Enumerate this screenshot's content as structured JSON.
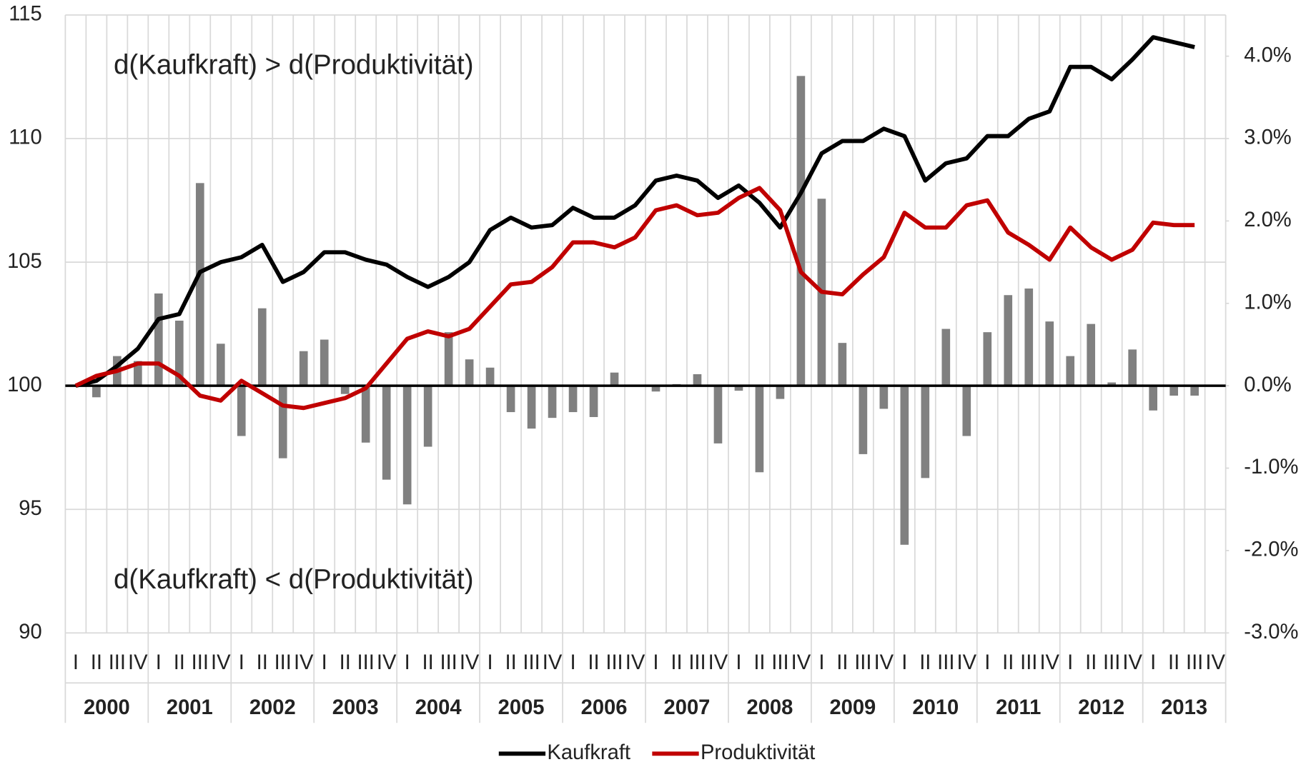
{
  "chart_data": {
    "type": "combo",
    "annotations": [
      "d(Kaufkraft) > d(Produktivität)",
      "d(Kaufkraft) < d(Produktivität)"
    ],
    "categories": [
      "I",
      "II",
      "III",
      "IV",
      "I",
      "II",
      "III",
      "IV",
      "I",
      "II",
      "III",
      "IV",
      "I",
      "II",
      "III",
      "IV",
      "I",
      "II",
      "III",
      "IV",
      "I",
      "II",
      "III",
      "IV",
      "I",
      "II",
      "III",
      "IV",
      "I",
      "II",
      "III",
      "IV",
      "I",
      "II",
      "III",
      "IV",
      "I",
      "II",
      "III",
      "IV",
      "I",
      "II",
      "III",
      "IV",
      "I",
      "II",
      "III",
      "IV",
      "I",
      "II",
      "III",
      "IV",
      "I",
      "II",
      "III",
      "IV"
    ],
    "years": [
      "2000",
      "2001",
      "2002",
      "2003",
      "2004",
      "2005",
      "2006",
      "2007",
      "2008",
      "2009",
      "2010",
      "2011",
      "2012",
      "2013"
    ],
    "ylim": [
      90,
      115
    ],
    "yticks": [
      90,
      95,
      100,
      105,
      110,
      115
    ],
    "y2lim": [
      -3,
      4.5
    ],
    "y2ticks": [
      {
        "value": -3,
        "label": "-3.0%"
      },
      {
        "value": -2,
        "label": "-2.0%"
      },
      {
        "value": -1,
        "label": "-1.0%"
      },
      {
        "value": 0,
        "label": "0.0%"
      },
      {
        "value": 1,
        "label": "1.0%"
      },
      {
        "value": 2,
        "label": "2.0%"
      },
      {
        "value": 3,
        "label": "3.0%"
      },
      {
        "value": 4,
        "label": "4.0%"
      }
    ],
    "grid": true,
    "legend": "bottom",
    "series": [
      {
        "type": "bar",
        "axis": "y2",
        "color": "#808080",
        "values": [
          0,
          -0.14,
          0.36,
          0.3,
          1.12,
          0.79,
          2.46,
          0.51,
          -0.61,
          0.94,
          -0.88,
          0.42,
          0.56,
          -0.1,
          -0.69,
          -1.14,
          -1.44,
          -0.74,
          0.65,
          0.32,
          0.22,
          -0.32,
          -0.52,
          -0.39,
          -0.32,
          -0.38,
          0.16,
          0,
          -0.07,
          0.02,
          0.14,
          -0.7,
          -0.06,
          -1.05,
          -0.16,
          3.76,
          2.27,
          0.52,
          -0.83,
          -0.28,
          -1.93,
          -1.12,
          0.69,
          -0.61,
          0.65,
          1.1,
          1.18,
          0.78,
          0.36,
          0.75,
          0.04,
          0.44,
          -0.3,
          -0.12,
          -0.12,
          null
        ]
      },
      {
        "type": "line",
        "name": "Kaufkraft",
        "color": "#000000",
        "values": [
          100,
          100.2,
          100.8,
          101.5,
          102.7,
          102.9,
          104.6,
          105.0,
          105.2,
          105.7,
          104.2,
          104.6,
          105.4,
          105.4,
          105.1,
          104.9,
          104.4,
          104.0,
          104.4,
          105.0,
          106.3,
          106.8,
          106.4,
          106.5,
          107.2,
          106.8,
          106.8,
          107.3,
          108.3,
          108.5,
          108.3,
          107.6,
          108.1,
          107.4,
          106.4,
          107.8,
          109.4,
          109.9,
          109.9,
          110.4,
          110.1,
          108.3,
          109.0,
          109.2,
          110.1,
          110.1,
          110.8,
          111.1,
          112.9,
          112.9,
          112.4,
          113.2,
          114.1,
          113.9,
          113.7,
          null
        ]
      },
      {
        "type": "line",
        "name": "Produktivität",
        "color": "#c00000",
        "values": [
          100,
          100.4,
          100.6,
          100.9,
          100.9,
          100.4,
          99.6,
          99.4,
          100.2,
          99.7,
          99.2,
          99.1,
          99.3,
          99.5,
          99.9,
          100.9,
          101.9,
          102.2,
          102.0,
          102.3,
          103.2,
          104.1,
          104.2,
          104.8,
          105.8,
          105.8,
          105.6,
          106.0,
          107.1,
          107.3,
          106.9,
          107.0,
          107.6,
          108.0,
          107.1,
          104.6,
          103.8,
          103.7,
          104.5,
          105.2,
          107.0,
          106.4,
          106.4,
          107.3,
          107.5,
          106.2,
          105.7,
          105.1,
          106.4,
          105.6,
          105.1,
          105.5,
          106.6,
          106.5,
          106.5,
          null
        ]
      }
    ]
  }
}
